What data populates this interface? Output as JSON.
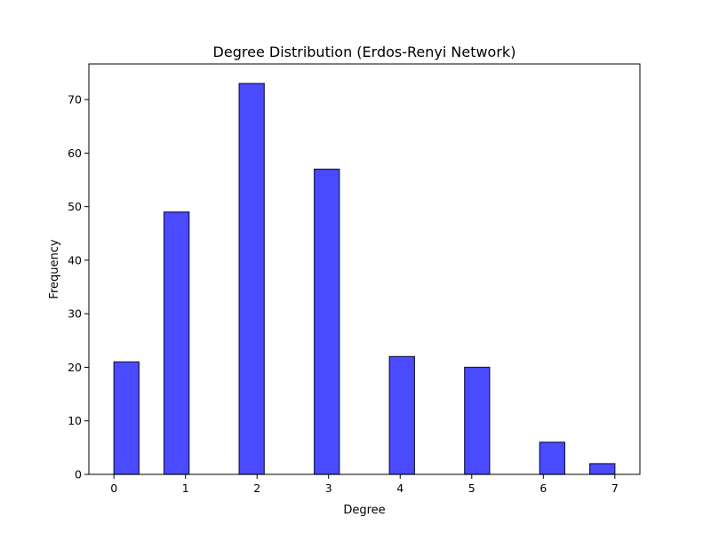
{
  "chart_data": {
    "type": "bar",
    "title": "Degree Distribution (Erdos-Renyi Network)",
    "xlabel": "Degree",
    "ylabel": "Frequency",
    "bars": [
      {
        "x_start": 0.0,
        "x_end": 0.35,
        "value": 21
      },
      {
        "x_start": 0.7,
        "x_end": 1.05,
        "value": 49
      },
      {
        "x_start": 1.75,
        "x_end": 2.1,
        "value": 73
      },
      {
        "x_start": 2.8,
        "x_end": 3.15,
        "value": 57
      },
      {
        "x_start": 3.85,
        "x_end": 4.2,
        "value": 22
      },
      {
        "x_start": 4.9,
        "x_end": 5.25,
        "value": 20
      },
      {
        "x_start": 5.95,
        "x_end": 6.3,
        "value": 6
      },
      {
        "x_start": 6.65,
        "x_end": 7.0,
        "value": 2
      }
    ],
    "xlim": [
      -0.35,
      7.35
    ],
    "ylim": [
      0,
      76.65
    ],
    "xticks": [
      0,
      1,
      2,
      3,
      4,
      5,
      6,
      7
    ],
    "yticks": [
      0,
      10,
      20,
      30,
      40,
      50,
      60,
      70
    ],
    "bar_color": "#4a4aff",
    "edge_color": "#1a1a4d",
    "grid": false,
    "legend": "none"
  }
}
